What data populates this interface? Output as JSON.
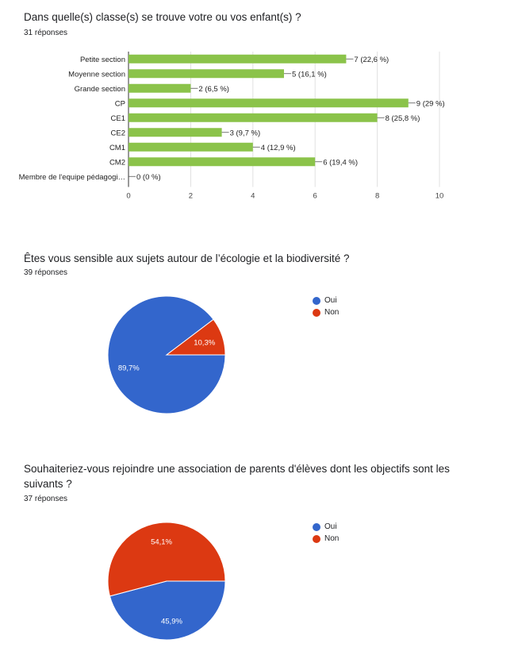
{
  "colors": {
    "bar": "#8bc34a",
    "blue": "#3366cc",
    "red": "#dc3912",
    "grid": "#e0e0e0",
    "axis": "#333333"
  },
  "charts": [
    {
      "title": "Dans quelle(s) classe(s) se trouve votre ou vos enfant(s) ?",
      "responses": "31 réponses"
    },
    {
      "title": "Êtes vous sensible aux sujets autour de l’écologie et la biodiversité  ?",
      "responses": "39 réponses"
    },
    {
      "title": "Souhaiteriez-vous rejoindre une association de parents d'élèves dont les objectifs sont les suivants ?",
      "responses": "37 réponses"
    }
  ],
  "chart_data": [
    {
      "type": "bar",
      "orientation": "horizontal",
      "categories": [
        "Petite section",
        "Moyenne section",
        "Grande section",
        "CP",
        "CE1",
        "CE2",
        "CM1",
        "CM2",
        "Membre de l'equipe pédagogi…"
      ],
      "values": [
        7,
        5,
        2,
        9,
        8,
        3,
        4,
        6,
        0
      ],
      "data_labels": [
        "7 (22,6 %)",
        "5 (16,1 %)",
        "2 (6,5 %)",
        "9 (29 %)",
        "8 (25,8 %)",
        "3 (9,7 %)",
        "4 (12,9 %)",
        "6 (19,4 %)",
        "0 (0 %)"
      ],
      "title": "Dans quelle(s) classe(s) se trouve votre ou vos enfant(s) ?",
      "xlim": [
        0,
        10
      ],
      "xticks": [
        "0",
        "2",
        "4",
        "6",
        "8",
        "10"
      ],
      "grid": true
    },
    {
      "type": "pie",
      "title": "Êtes vous sensible aux sujets autour de l’écologie et la biodiversité  ?",
      "labels": [
        "Oui",
        "Non"
      ],
      "values": [
        89.7,
        10.3
      ],
      "slice_labels": [
        "89,7%",
        "10,3%"
      ],
      "legend": "right"
    },
    {
      "type": "pie",
      "title": "Souhaiteriez-vous rejoindre une association de parents d'élèves dont les objectifs sont les suivants ?",
      "labels": [
        "Oui",
        "Non"
      ],
      "values": [
        45.9,
        54.1
      ],
      "slice_labels": [
        "45,9%",
        "54,1%"
      ],
      "legend": "right"
    }
  ]
}
